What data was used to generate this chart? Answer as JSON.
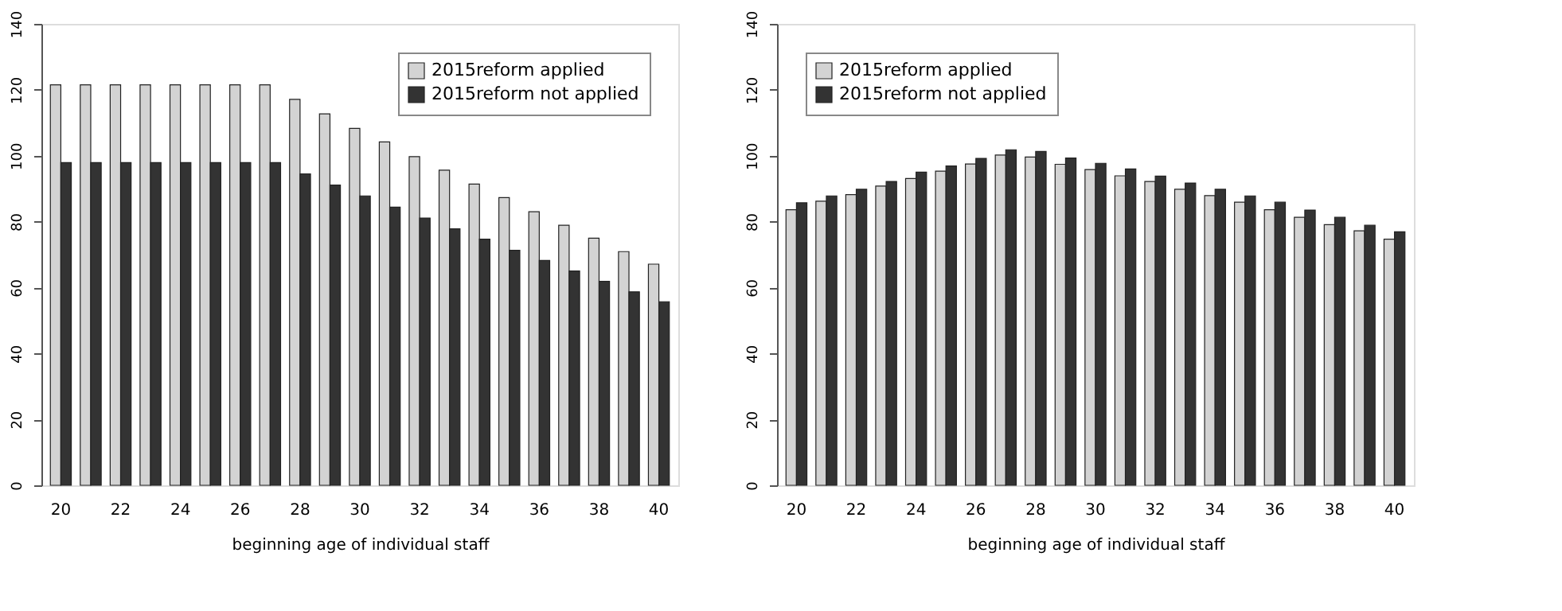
{
  "chart_data": [
    {
      "type": "bar",
      "xlabel": "beginning age of individual staff",
      "categories": [
        "20",
        null,
        "22",
        null,
        "24",
        null,
        "26",
        null,
        "28",
        null,
        "30",
        null,
        "32",
        null,
        "34",
        null,
        "36",
        null,
        "38",
        null,
        "40"
      ],
      "series": [
        {
          "name": "2015reform applied",
          "color": "#d3d3d3",
          "values": [
            121.5,
            121.5,
            121.5,
            121.5,
            121.5,
            121.5,
            121.5,
            121.5,
            117.1,
            112.7,
            108.3,
            104.2,
            99.7,
            95.6,
            91.4,
            87.3,
            83.0,
            78.9,
            75.0,
            70.9,
            67.1
          ]
        },
        {
          "name": "2015reform not applied",
          "color": "#333333",
          "values": [
            97.9,
            97.9,
            97.9,
            97.9,
            97.9,
            97.9,
            97.9,
            97.9,
            94.5,
            91.1,
            87.8,
            84.4,
            81.1,
            77.8,
            74.7,
            71.3,
            68.2,
            65.0,
            61.9,
            58.7,
            55.7
          ]
        }
      ],
      "ylim": [
        0,
        140
      ],
      "yticks": [
        0,
        20,
        40,
        60,
        80,
        100,
        120,
        140
      ],
      "legend": "top right",
      "grid": false
    },
    {
      "type": "bar",
      "xlabel": "beginning age of individual staff",
      "categories": [
        "20",
        null,
        "22",
        null,
        "24",
        null,
        "26",
        null,
        "28",
        null,
        "30",
        null,
        "32",
        null,
        "34",
        null,
        "36",
        null,
        "38",
        null,
        "40"
      ],
      "series": [
        {
          "name": "2015reform applied",
          "color": "#d3d3d3",
          "values": [
            83.6,
            86.2,
            88.2,
            90.8,
            93.1,
            95.3,
            97.5,
            100.2,
            99.6,
            97.4,
            95.8,
            93.9,
            92.2,
            89.8,
            87.9,
            85.9,
            83.6,
            81.3,
            79.1,
            77.2,
            74.7
          ]
        },
        {
          "name": "2015reform not applied",
          "color": "#333333",
          "values": [
            85.7,
            87.8,
            89.8,
            92.2,
            95.0,
            96.9,
            99.2,
            101.8,
            101.3,
            99.3,
            97.7,
            96.0,
            93.8,
            91.7,
            89.8,
            87.8,
            85.9,
            83.5,
            81.3,
            78.9,
            76.9
          ]
        }
      ],
      "ylim": [
        0,
        140
      ],
      "yticks": [
        0,
        20,
        40,
        60,
        80,
        100,
        120,
        140
      ],
      "legend": "top left",
      "grid": false
    }
  ]
}
